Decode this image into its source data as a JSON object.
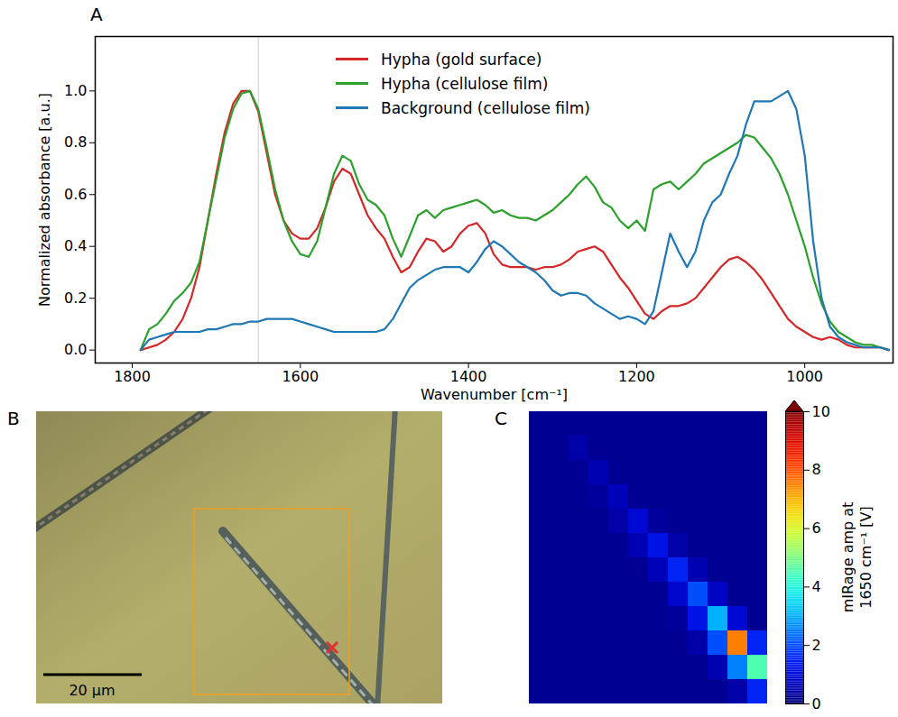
{
  "chart_data": [
    {
      "type": "line",
      "title": "A",
      "x_label": "Wavenumber [cm⁻¹]",
      "y_label": "Normalized absorbance [a.u.]",
      "xlim": [
        1844,
        895
      ],
      "ylim": [
        -0.05,
        1.21
      ],
      "xticks": [
        1800,
        1600,
        1400,
        1200,
        1000
      ],
      "yticks": [
        {
          "value": 0,
          "label": "0.0"
        },
        0.2,
        0.4,
        0.6,
        0.8,
        {
          "value": 1,
          "label": "1.0"
        }
      ],
      "legend": "top",
      "vline": 1650,
      "x": [
        1790,
        1780,
        1770,
        1760,
        1750,
        1740,
        1730,
        1720,
        1710,
        1700,
        1690,
        1680,
        1670,
        1660,
        1650,
        1640,
        1630,
        1620,
        1610,
        1600,
        1590,
        1580,
        1570,
        1560,
        1550,
        1540,
        1530,
        1520,
        1510,
        1500,
        1490,
        1480,
        1470,
        1460,
        1450,
        1440,
        1430,
        1420,
        1410,
        1400,
        1390,
        1380,
        1370,
        1360,
        1350,
        1340,
        1330,
        1320,
        1310,
        1300,
        1290,
        1280,
        1270,
        1260,
        1250,
        1240,
        1230,
        1220,
        1210,
        1200,
        1190,
        1180,
        1170,
        1160,
        1150,
        1140,
        1130,
        1120,
        1110,
        1100,
        1090,
        1080,
        1070,
        1060,
        1050,
        1040,
        1030,
        1020,
        1010,
        1000,
        990,
        980,
        970,
        960,
        950,
        940,
        930,
        920,
        910,
        900
      ],
      "series": [
        {
          "name": "Hypha (gold surface)",
          "color": "#d62728",
          "values": [
            0.0,
            0.01,
            0.02,
            0.04,
            0.07,
            0.12,
            0.2,
            0.32,
            0.5,
            0.68,
            0.84,
            0.95,
            1.0,
            1.0,
            0.92,
            0.76,
            0.6,
            0.5,
            0.45,
            0.43,
            0.43,
            0.47,
            0.55,
            0.65,
            0.7,
            0.68,
            0.6,
            0.52,
            0.47,
            0.43,
            0.36,
            0.3,
            0.32,
            0.38,
            0.43,
            0.42,
            0.38,
            0.4,
            0.45,
            0.48,
            0.49,
            0.45,
            0.37,
            0.33,
            0.32,
            0.32,
            0.32,
            0.31,
            0.32,
            0.32,
            0.33,
            0.35,
            0.38,
            0.39,
            0.4,
            0.38,
            0.33,
            0.28,
            0.24,
            0.19,
            0.14,
            0.12,
            0.15,
            0.17,
            0.17,
            0.18,
            0.2,
            0.24,
            0.28,
            0.32,
            0.35,
            0.36,
            0.34,
            0.31,
            0.27,
            0.22,
            0.17,
            0.12,
            0.09,
            0.07,
            0.05,
            0.04,
            0.05,
            0.04,
            0.02,
            0.01,
            0.01,
            0.01,
            0.01,
            0.0
          ]
        },
        {
          "name": "Hypha (cellulose film)",
          "color": "#2ca02c",
          "values": [
            0.0,
            0.08,
            0.1,
            0.14,
            0.19,
            0.22,
            0.26,
            0.34,
            0.5,
            0.66,
            0.82,
            0.93,
            0.99,
            1.0,
            0.93,
            0.78,
            0.62,
            0.5,
            0.42,
            0.37,
            0.36,
            0.42,
            0.55,
            0.68,
            0.75,
            0.73,
            0.64,
            0.58,
            0.56,
            0.52,
            0.43,
            0.36,
            0.44,
            0.52,
            0.54,
            0.51,
            0.54,
            0.55,
            0.56,
            0.57,
            0.58,
            0.56,
            0.53,
            0.54,
            0.52,
            0.51,
            0.51,
            0.5,
            0.52,
            0.54,
            0.57,
            0.6,
            0.64,
            0.67,
            0.63,
            0.57,
            0.55,
            0.5,
            0.47,
            0.5,
            0.46,
            0.62,
            0.64,
            0.65,
            0.62,
            0.65,
            0.68,
            0.72,
            0.74,
            0.76,
            0.78,
            0.8,
            0.83,
            0.82,
            0.78,
            0.74,
            0.68,
            0.6,
            0.5,
            0.4,
            0.28,
            0.18,
            0.11,
            0.07,
            0.05,
            0.03,
            0.02,
            0.02,
            0.01,
            0.0
          ]
        },
        {
          "name": "Background (cellulose film)",
          "color": "#1f77b4",
          "values": [
            0.0,
            0.04,
            0.05,
            0.06,
            0.07,
            0.07,
            0.07,
            0.07,
            0.08,
            0.08,
            0.09,
            0.1,
            0.1,
            0.11,
            0.11,
            0.12,
            0.12,
            0.12,
            0.12,
            0.11,
            0.1,
            0.09,
            0.08,
            0.07,
            0.07,
            0.07,
            0.07,
            0.07,
            0.07,
            0.08,
            0.12,
            0.18,
            0.24,
            0.27,
            0.29,
            0.31,
            0.32,
            0.32,
            0.32,
            0.3,
            0.34,
            0.39,
            0.42,
            0.4,
            0.37,
            0.34,
            0.32,
            0.3,
            0.27,
            0.23,
            0.21,
            0.22,
            0.22,
            0.21,
            0.18,
            0.16,
            0.14,
            0.12,
            0.13,
            0.12,
            0.1,
            0.15,
            0.3,
            0.45,
            0.38,
            0.32,
            0.38,
            0.5,
            0.57,
            0.6,
            0.68,
            0.75,
            0.87,
            0.96,
            0.96,
            0.96,
            0.98,
            1.0,
            0.93,
            0.75,
            0.42,
            0.2,
            0.09,
            0.05,
            0.03,
            0.02,
            0.01,
            0.01,
            0.01,
            0.0
          ]
        }
      ]
    },
    {
      "type": "heatmap",
      "title": "C",
      "tick_labels": false,
      "cells": [
        [
          0.2,
          0.2,
          0.2,
          0.2,
          0.2,
          0.2,
          0.2,
          0.2,
          0.2,
          0.2,
          0.2,
          0.2
        ],
        [
          0.2,
          0.2,
          0.4,
          0.2,
          0.2,
          0.2,
          0.2,
          0.2,
          0.2,
          0.2,
          0.2,
          0.2
        ],
        [
          0.2,
          0.2,
          0.2,
          0.5,
          0.2,
          0.2,
          0.2,
          0.2,
          0.2,
          0.2,
          0.2,
          0.2
        ],
        [
          0.2,
          0.2,
          0.2,
          0.3,
          0.6,
          0.2,
          0.2,
          0.2,
          0.2,
          0.2,
          0.2,
          0.2
        ],
        [
          0.2,
          0.2,
          0.2,
          0.2,
          0.4,
          0.9,
          0.3,
          0.2,
          0.2,
          0.2,
          0.2,
          0.2
        ],
        [
          0.2,
          0.2,
          0.2,
          0.2,
          0.2,
          0.5,
          1.2,
          0.4,
          0.2,
          0.2,
          0.2,
          0.2
        ],
        [
          0.2,
          0.2,
          0.2,
          0.2,
          0.2,
          0.2,
          0.6,
          1.5,
          0.5,
          0.2,
          0.2,
          0.2
        ],
        [
          0.2,
          0.2,
          0.2,
          0.2,
          0.2,
          0.2,
          0.2,
          0.8,
          2.0,
          0.7,
          0.2,
          0.2
        ],
        [
          0.2,
          0.2,
          0.2,
          0.2,
          0.2,
          0.2,
          0.2,
          0.3,
          1.2,
          3.0,
          0.9,
          0.2
        ],
        [
          0.2,
          0.2,
          0.2,
          0.2,
          0.2,
          0.2,
          0.2,
          0.2,
          0.4,
          2.0,
          7.5,
          1.5
        ],
        [
          0.2,
          0.2,
          0.2,
          0.2,
          0.2,
          0.2,
          0.2,
          0.2,
          0.2,
          0.5,
          2.5,
          4.5
        ],
        [
          0.2,
          0.2,
          0.2,
          0.2,
          0.2,
          0.2,
          0.2,
          0.2,
          0.2,
          0.2,
          0.4,
          1.5
        ]
      ],
      "colorbar_label": "mIRage amp at 1650 cm⁻¹ [V]",
      "colorbar_range": [
        0,
        10
      ],
      "colorbar_ticks": [
        0,
        2,
        4,
        6,
        8,
        10
      ]
    }
  ],
  "image": {
    "title": "B",
    "scale_bar": "20 µm"
  }
}
